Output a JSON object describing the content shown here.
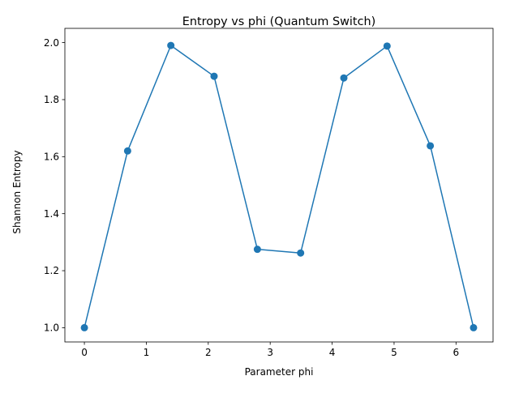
{
  "chart_data": {
    "type": "line",
    "title": "Entropy vs phi (Quantum Switch)",
    "xlabel": "Parameter phi",
    "ylabel": "Shannon Entropy",
    "xlim": [
      -0.315,
      6.598
    ],
    "ylim": [
      0.95,
      2.05
    ],
    "xticks": [
      0,
      1,
      2,
      3,
      4,
      5,
      6
    ],
    "yticks": [
      1.0,
      1.2,
      1.4,
      1.6,
      1.8,
      2.0
    ],
    "xtick_labels": [
      "0",
      "1",
      "2",
      "3",
      "4",
      "5",
      "6"
    ],
    "ytick_labels": [
      "1.0",
      "1.2",
      "1.4",
      "1.6",
      "1.8",
      "2.0"
    ],
    "grid": false,
    "color": "#1f77b4",
    "marker": "circle",
    "series": [
      {
        "x": [
          0.0,
          0.698,
          1.396,
          2.094,
          2.793,
          3.491,
          4.189,
          4.887,
          5.585,
          6.283
        ],
        "y": [
          1.0,
          1.62,
          1.99,
          1.882,
          1.275,
          1.262,
          1.876,
          1.988,
          1.638,
          1.0
        ]
      }
    ]
  }
}
